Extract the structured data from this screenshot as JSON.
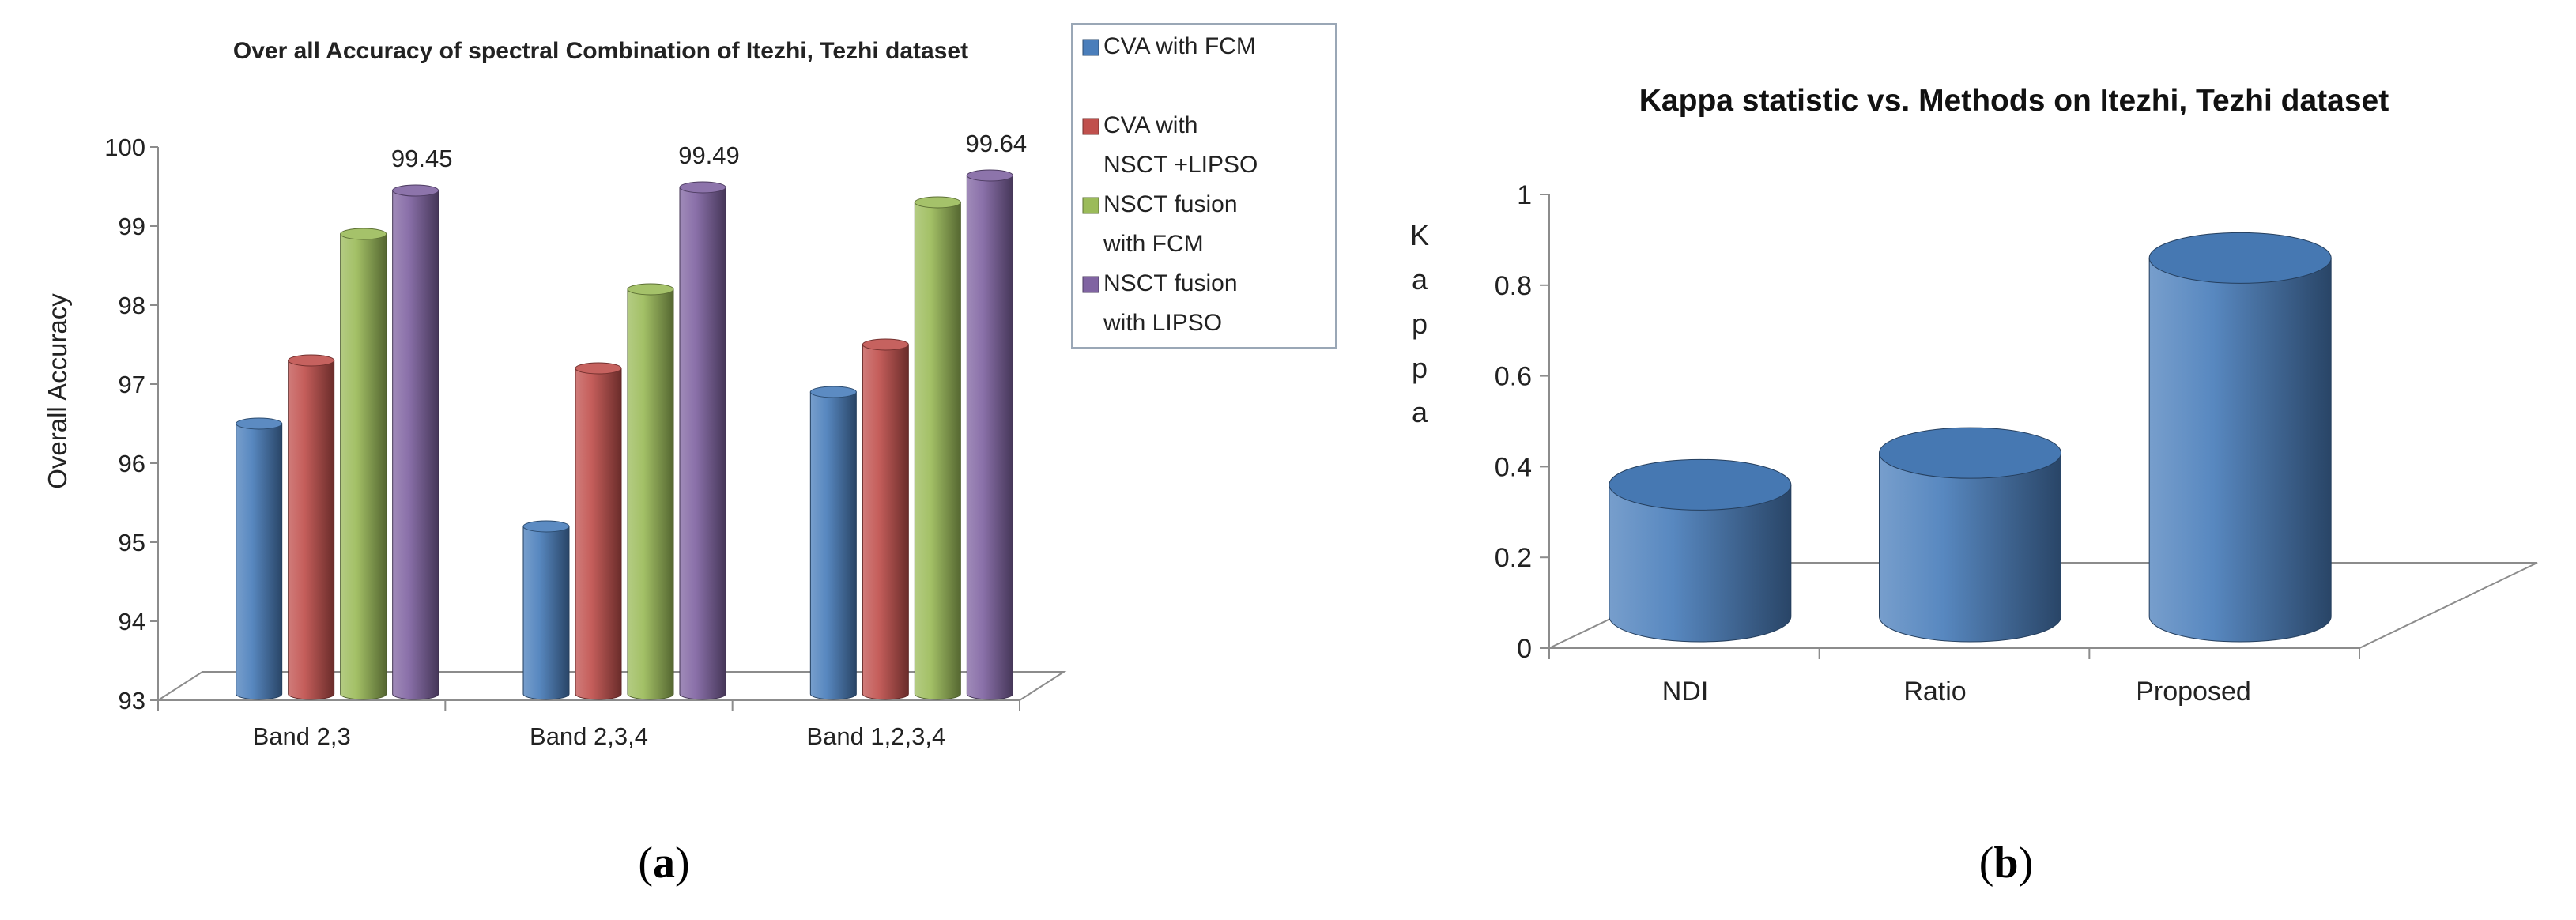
{
  "chart_data": [
    {
      "type": "bar",
      "panel_label": "(a)",
      "title": "Over all Accuracy of spectral Combination of Itezhi, Tezhi dataset",
      "xlabel": "",
      "ylabel": "Overall Accuracy",
      "ylim": [
        93,
        100
      ],
      "yticks": [
        93,
        94,
        95,
        96,
        97,
        98,
        99,
        100
      ],
      "categories": [
        "Band 2,3",
        "Band 2,3,4",
        "Band 1,2,3,4"
      ],
      "series": [
        {
          "name": "CVA with FCM",
          "legend_lines": [
            "CVA with FCM"
          ],
          "color": "#4a7ebb",
          "values": [
            96.5,
            95.2,
            96.9
          ]
        },
        {
          "name": "CVA with NSCT +LIPSO",
          "legend_lines": [
            "CVA with",
            "NSCT +LIPSO"
          ],
          "color": "#c0504d",
          "values": [
            97.3,
            97.2,
            97.5
          ]
        },
        {
          "name": "NSCT fusion with FCM",
          "legend_lines": [
            "NSCT fusion",
            "with FCM"
          ],
          "color": "#9bbb59",
          "values": [
            98.9,
            98.2,
            99.3
          ]
        },
        {
          "name": "NSCT fusion with LIPSO",
          "legend_lines": [
            "NSCT fusion",
            "with LIPSO"
          ],
          "color": "#8064a2",
          "values": [
            99.45,
            99.49,
            99.64
          ]
        }
      ],
      "data_labels": [
        "99.45",
        "99.49",
        "99.64"
      ],
      "legend_position": "right",
      "grid": false
    },
    {
      "type": "bar",
      "panel_label": "(b)",
      "title": "Kappa  statistic vs. Methods on Itezhi, Tezhi dataset",
      "xlabel": "",
      "ylabel": "Kappa",
      "ylim": [
        0,
        1
      ],
      "yticks": [
        "0",
        "0.2",
        "0.4",
        "0.6",
        "0.8",
        "1"
      ],
      "categories": [
        "NDI",
        "Ratio",
        "Proposed"
      ],
      "series": [
        {
          "name": "Kappa",
          "color": "#4a7ebb",
          "values": [
            0.36,
            0.43,
            0.86
          ]
        }
      ],
      "legend_position": "none",
      "grid": false
    }
  ]
}
